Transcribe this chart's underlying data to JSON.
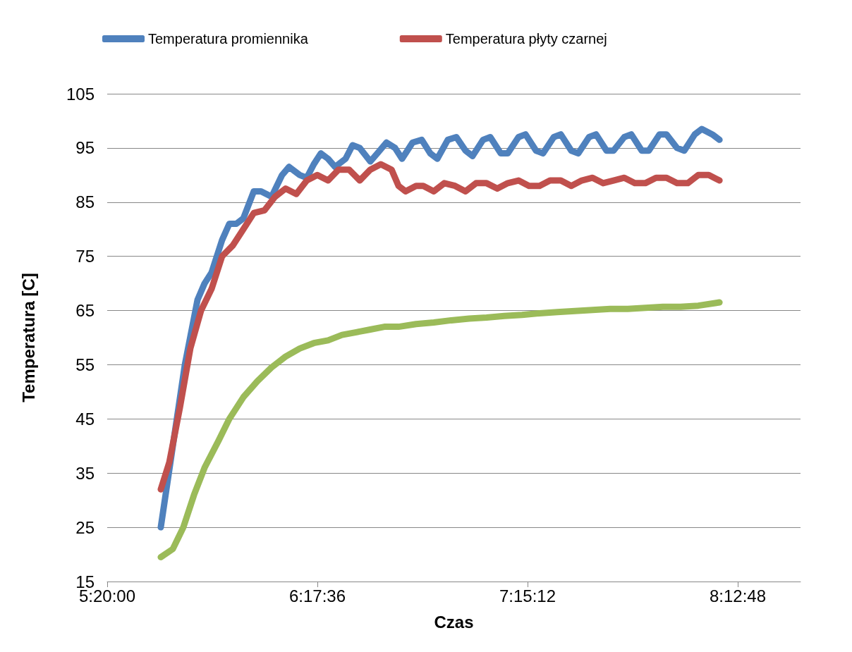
{
  "chart_data": {
    "type": "line",
    "xlabel": "Czas",
    "ylabel": "Temperatura [C]",
    "xlim": [
      5.3333,
      8.5
    ],
    "xticks": [
      {
        "value": 5.3333,
        "label": "5:20:00"
      },
      {
        "value": 6.2933,
        "label": "6:17:36"
      },
      {
        "value": 7.2533,
        "label": "7:15:12"
      },
      {
        "value": 8.2133,
        "label": "8:12:48"
      }
    ],
    "ylim": [
      15,
      105
    ],
    "yticks": [
      15,
      25,
      35,
      45,
      55,
      65,
      75,
      85,
      95,
      105
    ],
    "grid": "y",
    "legend": "top",
    "marker": "none",
    "line_style": "solid",
    "series": [
      {
        "name": "Temperatura promiennika",
        "color": "#4f81bd",
        "x": [
          5.578,
          5.633,
          5.688,
          5.746,
          5.778,
          5.81,
          5.858,
          5.891,
          5.923,
          5.955,
          6.003,
          6.036,
          6.084,
          6.132,
          6.164,
          6.213,
          6.245,
          6.277,
          6.309,
          6.342,
          6.374,
          6.422,
          6.454,
          6.487,
          6.535,
          6.567,
          6.609,
          6.648,
          6.68,
          6.728,
          6.77,
          6.809,
          6.841,
          6.889,
          6.928,
          6.97,
          7.002,
          7.05,
          7.083,
          7.131,
          7.163,
          7.212,
          7.244,
          7.292,
          7.324,
          7.373,
          7.405,
          7.453,
          7.485,
          7.534,
          7.566,
          7.614,
          7.646,
          7.695,
          7.727,
          7.775,
          7.807,
          7.856,
          7.888,
          7.936,
          7.969,
          8.017,
          8.049,
          8.097,
          8.13
        ],
        "values": [
          25,
          40,
          55,
          67,
          70,
          72,
          78,
          81,
          81,
          82,
          87,
          87,
          86,
          90,
          91.5,
          90,
          89.5,
          92,
          94,
          93,
          91.5,
          93,
          95.5,
          95,
          92.5,
          94,
          96,
          95,
          93,
          96,
          96.5,
          94,
          93,
          96.5,
          97,
          94.5,
          93.5,
          96.5,
          97,
          94,
          94,
          97,
          97.5,
          94.5,
          94,
          97,
          97.5,
          94.5,
          94,
          97,
          97.5,
          94.5,
          94.5,
          97,
          97.5,
          94.5,
          94.5,
          97.5,
          97.5,
          95,
          94.5,
          97.5,
          98.5,
          97.5,
          96.5
        ]
      },
      {
        "name": "Temperatura płyty czarnej",
        "color": "#c0504d",
        "x": [
          5.578,
          5.617,
          5.665,
          5.713,
          5.762,
          5.81,
          5.858,
          5.907,
          5.955,
          6.003,
          6.052,
          6.1,
          6.148,
          6.197,
          6.245,
          6.293,
          6.342,
          6.39,
          6.438,
          6.487,
          6.535,
          6.583,
          6.632,
          6.664,
          6.696,
          6.744,
          6.777,
          6.825,
          6.873,
          6.922,
          6.97,
          7.018,
          7.066,
          7.115,
          7.163,
          7.212,
          7.26,
          7.308,
          7.356,
          7.405,
          7.453,
          7.501,
          7.55,
          7.598,
          7.646,
          7.695,
          7.743,
          7.791,
          7.84,
          7.888,
          7.936,
          7.985,
          8.033,
          8.081,
          8.13
        ],
        "values": [
          32,
          37,
          47,
          58,
          65,
          69,
          75,
          77,
          80,
          83,
          83.5,
          86,
          87.5,
          86.5,
          89,
          90,
          89,
          91,
          91,
          89,
          91,
          92,
          91,
          88,
          87,
          88,
          88,
          87,
          88.5,
          88,
          87,
          88.5,
          88.5,
          87.5,
          88.5,
          89,
          88,
          88,
          89,
          89,
          88,
          89,
          89.5,
          88.5,
          89,
          89.5,
          88.5,
          88.5,
          89.5,
          89.5,
          88.5,
          88.5,
          90,
          90,
          89
        ]
      },
      {
        "color": "#9bbb59",
        "x": [
          5.578,
          5.633,
          5.681,
          5.73,
          5.778,
          5.842,
          5.891,
          5.955,
          6.02,
          6.084,
          6.148,
          6.213,
          6.277,
          6.342,
          6.406,
          6.471,
          6.535,
          6.599,
          6.664,
          6.744,
          6.825,
          6.905,
          6.986,
          7.066,
          7.147,
          7.228,
          7.308,
          7.389,
          7.469,
          7.55,
          7.63,
          7.711,
          7.791,
          7.872,
          7.952,
          8.033,
          8.13
        ],
        "values": [
          19.5,
          21,
          25,
          31,
          36,
          41,
          45,
          49,
          52,
          54.5,
          56.5,
          58,
          59,
          59.5,
          60.5,
          61,
          61.5,
          62,
          62,
          62.5,
          62.8,
          63.2,
          63.5,
          63.7,
          64,
          64.2,
          64.5,
          64.7,
          64.9,
          65.1,
          65.3,
          65.3,
          65.5,
          65.7,
          65.7,
          65.9,
          66.5
        ]
      }
    ]
  }
}
